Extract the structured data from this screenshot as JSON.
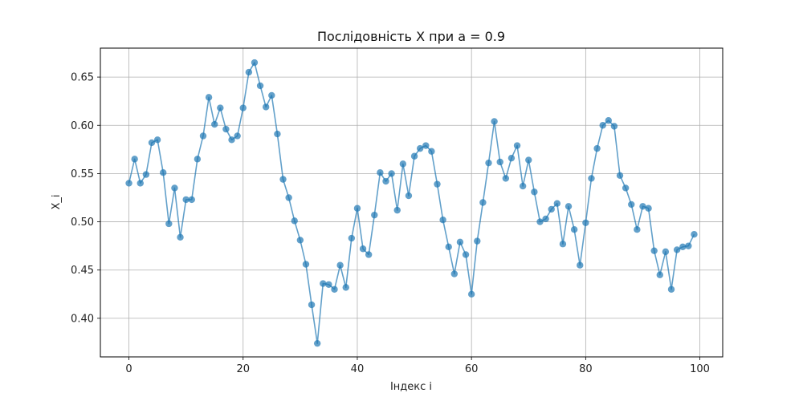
{
  "chart_data": {
    "type": "line",
    "title": "Послідовність X при a = 0.9",
    "xlabel": "Індекс i",
    "ylabel": "X_i",
    "xlim": [
      -5,
      104
    ],
    "ylim": [
      0.36,
      0.68
    ],
    "xticks": [
      0,
      20,
      40,
      60,
      80,
      100
    ],
    "yticks": [
      0.4,
      0.45,
      0.5,
      0.55,
      0.6,
      0.65
    ],
    "grid": true,
    "markers": true,
    "color": "#1f77b4",
    "x": [
      0,
      1,
      2,
      3,
      4,
      5,
      6,
      7,
      8,
      9,
      10,
      11,
      12,
      13,
      14,
      15,
      16,
      17,
      18,
      19,
      20,
      21,
      22,
      23,
      24,
      25,
      26,
      27,
      28,
      29,
      30,
      31,
      32,
      33,
      34,
      35,
      36,
      37,
      38,
      39,
      40,
      41,
      42,
      43,
      44,
      45,
      46,
      47,
      48,
      49,
      50,
      51,
      52,
      53,
      54,
      55,
      56,
      57,
      58,
      59,
      60,
      61,
      62,
      63,
      64,
      65,
      66,
      67,
      68,
      69,
      70,
      71,
      72,
      73,
      74,
      75,
      76,
      77,
      78,
      79,
      80,
      81,
      82,
      83,
      84,
      85,
      86,
      87,
      88,
      89,
      90,
      91,
      92,
      93,
      94,
      95,
      96,
      97,
      98,
      99
    ],
    "y": [
      0.54,
      0.565,
      0.54,
      0.549,
      0.582,
      0.585,
      0.551,
      0.498,
      0.535,
      0.484,
      0.523,
      0.523,
      0.565,
      0.589,
      0.629,
      0.601,
      0.618,
      0.596,
      0.585,
      0.589,
      0.618,
      0.655,
      0.665,
      0.641,
      0.619,
      0.631,
      0.591,
      0.544,
      0.525,
      0.501,
      0.481,
      0.456,
      0.414,
      0.374,
      0.436,
      0.435,
      0.43,
      0.455,
      0.432,
      0.483,
      0.514,
      0.472,
      0.466,
      0.507,
      0.551,
      0.542,
      0.55,
      0.512,
      0.56,
      0.527,
      0.568,
      0.576,
      0.579,
      0.573,
      0.539,
      0.502,
      0.474,
      0.446,
      0.479,
      0.466,
      0.425,
      0.48,
      0.52,
      0.561,
      0.604,
      0.562,
      0.545,
      0.566,
      0.579,
      0.537,
      0.564,
      0.531,
      0.5,
      0.503,
      0.513,
      0.519,
      0.477,
      0.516,
      0.492,
      0.455,
      0.499,
      0.545,
      0.576,
      0.6,
      0.605,
      0.599,
      0.548,
      0.535,
      0.518,
      0.492,
      0.516,
      0.514,
      0.47,
      0.445,
      0.469,
      0.43,
      0.471,
      0.474,
      0.475,
      0.487
    ]
  }
}
